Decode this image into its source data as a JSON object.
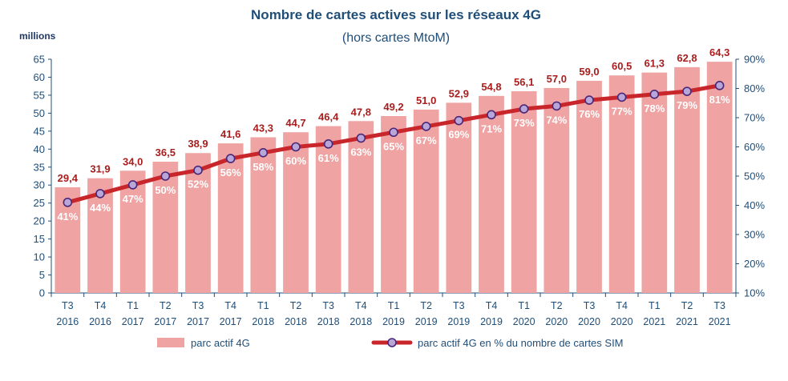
{
  "chart_data": {
    "type": "bar+line",
    "title": "Nombre de cartes actives sur les réseaux 4G",
    "subtitle": "(hors cartes MtoM)",
    "ylabel": "millions",
    "ylim": [
      0,
      65
    ],
    "y_ticks": [
      "0",
      "5",
      "10",
      "15",
      "20",
      "25",
      "30",
      "35",
      "40",
      "45",
      "50",
      "55",
      "60",
      "65"
    ],
    "y2lim": [
      10,
      90
    ],
    "y2_ticks": [
      "10%",
      "20%",
      "30%",
      "40%",
      "50%",
      "60%",
      "70%",
      "80%",
      "90%"
    ],
    "categories": [
      [
        "T3",
        "2016"
      ],
      [
        "T4",
        "2016"
      ],
      [
        "T1",
        "2017"
      ],
      [
        "T2",
        "2017"
      ],
      [
        "T3",
        "2017"
      ],
      [
        "T4",
        "2017"
      ],
      [
        "T1",
        "2018"
      ],
      [
        "T2",
        "2018"
      ],
      [
        "T3",
        "2018"
      ],
      [
        "T4",
        "2018"
      ],
      [
        "T1",
        "2019"
      ],
      [
        "T2",
        "2019"
      ],
      [
        "T3",
        "2019"
      ],
      [
        "T4",
        "2019"
      ],
      [
        "T1",
        "2020"
      ],
      [
        "T2",
        "2020"
      ],
      [
        "T3",
        "2020"
      ],
      [
        "T4",
        "2020"
      ],
      [
        "T1",
        "2021"
      ],
      [
        "T2",
        "2021"
      ],
      [
        "T3",
        "2021"
      ]
    ],
    "series": [
      {
        "name": "parc actif 4G",
        "kind": "bar",
        "axis": "left",
        "values": [
          29.4,
          31.9,
          34.0,
          36.5,
          38.9,
          41.6,
          43.3,
          44.7,
          46.4,
          47.8,
          49.2,
          51.0,
          52.9,
          54.8,
          56.1,
          57.0,
          59.0,
          60.5,
          61.3,
          62.8,
          64.3
        ],
        "labels": [
          "29,4",
          "31,9",
          "34,0",
          "36,5",
          "38,9",
          "41,6",
          "43,3",
          "44,7",
          "46,4",
          "47,8",
          "49,2",
          "51,0",
          "52,9",
          "54,8",
          "56,1",
          "57,0",
          "59,0",
          "60,5",
          "61,3",
          "62,8",
          "64,3"
        ]
      },
      {
        "name": "parc actif 4G en % du nombre de cartes SIM",
        "kind": "line",
        "axis": "right",
        "values": [
          41,
          44,
          47,
          50,
          52,
          56,
          58,
          60,
          61,
          63,
          65,
          67,
          69,
          71,
          73,
          74,
          76,
          77,
          78,
          79,
          81
        ],
        "labels": [
          "41%",
          "44%",
          "47%",
          "50%",
          "52%",
          "56%",
          "58%",
          "60%",
          "61%",
          "63%",
          "65%",
          "67%",
          "69%",
          "71%",
          "73%",
          "74%",
          "76%",
          "77%",
          "78%",
          "79%",
          "81%"
        ]
      }
    ],
    "legend_position": "bottom",
    "colors": {
      "bar": "#efa3a3",
      "line": "#c8262b",
      "marker_fill": "#b8a6d9",
      "marker_stroke": "#4b2777",
      "axis": "#1f4e79",
      "title": "#1f4e79",
      "value_label": "#a81e1e",
      "pct_label": "#ffffff"
    }
  }
}
